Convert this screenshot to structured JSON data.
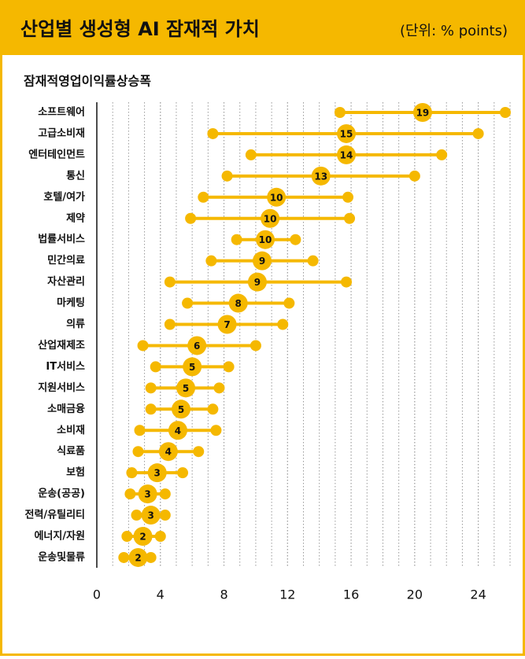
{
  "chart_data": {
    "type": "dumbbell",
    "title": "산업별 생성형 AI 잠재적 가치",
    "unit": "(단위: % points)",
    "subtitle": "잠재적영업이익률상승폭",
    "categories": [
      "소프트웨어",
      "고급소비재",
      "엔터테인먼트",
      "통신",
      "호텔/여가",
      "제약",
      "법률서비스",
      "민간의료",
      "자산관리",
      "마케팅",
      "의류",
      "산업재제조",
      "IT서비스",
      "지원서비스",
      "소매금융",
      "소비재",
      "식료품",
      "보험",
      "운송(공공)",
      "전력/유틸리티",
      "에너지/자원",
      "운송및물류"
    ],
    "low": [
      15.3,
      7.3,
      9.7,
      8.2,
      6.7,
      5.9,
      8.8,
      7.2,
      4.6,
      5.7,
      4.6,
      2.9,
      3.7,
      3.4,
      3.4,
      2.7,
      2.6,
      2.2,
      2.1,
      2.5,
      1.9,
      1.7
    ],
    "high": [
      25.7,
      24.0,
      21.7,
      20.0,
      15.8,
      15.9,
      12.5,
      13.6,
      15.7,
      12.1,
      11.7,
      10.0,
      8.3,
      7.7,
      7.3,
      7.5,
      6.4,
      5.4,
      4.3,
      4.3,
      4.0,
      3.4
    ],
    "mid": [
      20.5,
      15.7,
      15.7,
      14.1,
      11.3,
      10.9,
      10.6,
      10.4,
      10.1,
      8.9,
      8.2,
      6.3,
      6.0,
      5.6,
      5.3,
      5.1,
      4.5,
      3.8,
      3.2,
      3.4,
      2.9,
      2.6
    ],
    "values": [
      19,
      15,
      14,
      13,
      10,
      10,
      10,
      9,
      9,
      8,
      7,
      6,
      5,
      5,
      5,
      4,
      4,
      3,
      3,
      3,
      2,
      2
    ],
    "color": "#f5b800",
    "xlim": [
      0,
      26
    ],
    "xticks": [
      0,
      4,
      8,
      12,
      16,
      20,
      24
    ],
    "grid": true
  }
}
